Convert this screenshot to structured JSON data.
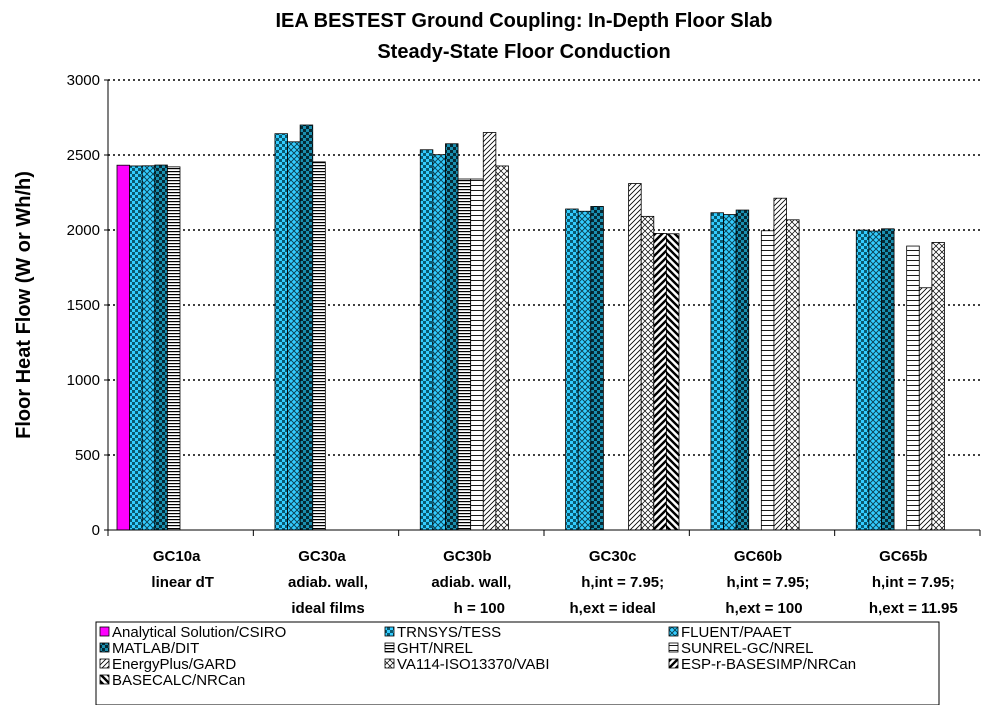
{
  "chart_data": {
    "type": "bar",
    "title_lines": [
      "IEA BESTEST Ground Coupling: In-Depth Floor Slab",
      "Steady-State Floor Conduction"
    ],
    "xlabel": "",
    "ylabel": "Floor Heat Flow (W or Wh/h)",
    "ylim": [
      0,
      3000
    ],
    "yticks": [
      "0",
      "500",
      "1000",
      "1500",
      "2000",
      "2500",
      "3000"
    ],
    "grid": "horizontal dotted",
    "legend_position": "bottom",
    "categories": [
      [
        "GC10a",
        "linear dT"
      ],
      [
        "GC30a",
        "adiab. wall,",
        "ideal films"
      ],
      [
        "GC30b",
        "adiab. wall,",
        "h = 100"
      ],
      [
        "GC30c",
        "h,int = 7.95;",
        "h,ext = ideal"
      ],
      [
        "GC60b",
        "h,int = 7.95;",
        "h,ext = 100"
      ],
      [
        "GC65b",
        "h,int = 7.95;",
        "h,ext = 11.95"
      ]
    ],
    "series": [
      {
        "name": "Analytical Solution/CSIRO",
        "pattern": "solid",
        "color": "#ff00ff",
        "values": [
          2432,
          null,
          null,
          null,
          null,
          null
        ]
      },
      {
        "name": "TRNSYS/TESS",
        "pattern": "checker",
        "color": "#33ccff",
        "values": [
          2427,
          2642,
          2535,
          2140,
          2115,
          1999
        ]
      },
      {
        "name": "FLUENT/PAAET",
        "pattern": "diamond",
        "color": "#33ccff",
        "values": [
          2428,
          2588,
          2502,
          2125,
          2103,
          1993
        ]
      },
      {
        "name": "MATLAB/DIT",
        "pattern": "checker-dark",
        "color": "#33ccff",
        "values": [
          2433,
          2700,
          2575,
          2157,
          2133,
          2008
        ]
      },
      {
        "name": "GHT/NREL",
        "pattern": "hlines-dense",
        "color": "#ffffff",
        "values": [
          2421,
          2454,
          2340,
          null,
          null,
          null
        ]
      },
      {
        "name": "SUNREL-GC/NREL",
        "pattern": "hlines",
        "color": "#ffffff",
        "values": [
          null,
          null,
          2340,
          null,
          1995,
          1893
        ]
      },
      {
        "name": "EnergyPlus/GARD",
        "pattern": "diag",
        "color": "#ffffff",
        "values": [
          null,
          null,
          2650,
          2310,
          2212,
          1615
        ]
      },
      {
        "name": "VA114-ISO13370/VABI",
        "pattern": "crosshatch",
        "color": "#ffffff",
        "values": [
          null,
          null,
          2427,
          2091,
          2068,
          1917
        ]
      },
      {
        "name": "ESP-r-BASESIMP/NRCan",
        "pattern": "diag-bold",
        "color": "#ffffff",
        "values": [
          null,
          null,
          null,
          1977,
          null,
          null
        ]
      },
      {
        "name": "BASECALC/NRCan",
        "pattern": "diag-back-bold",
        "color": "#ffffff",
        "values": [
          null,
          null,
          null,
          1975,
          null,
          null
        ]
      }
    ]
  }
}
